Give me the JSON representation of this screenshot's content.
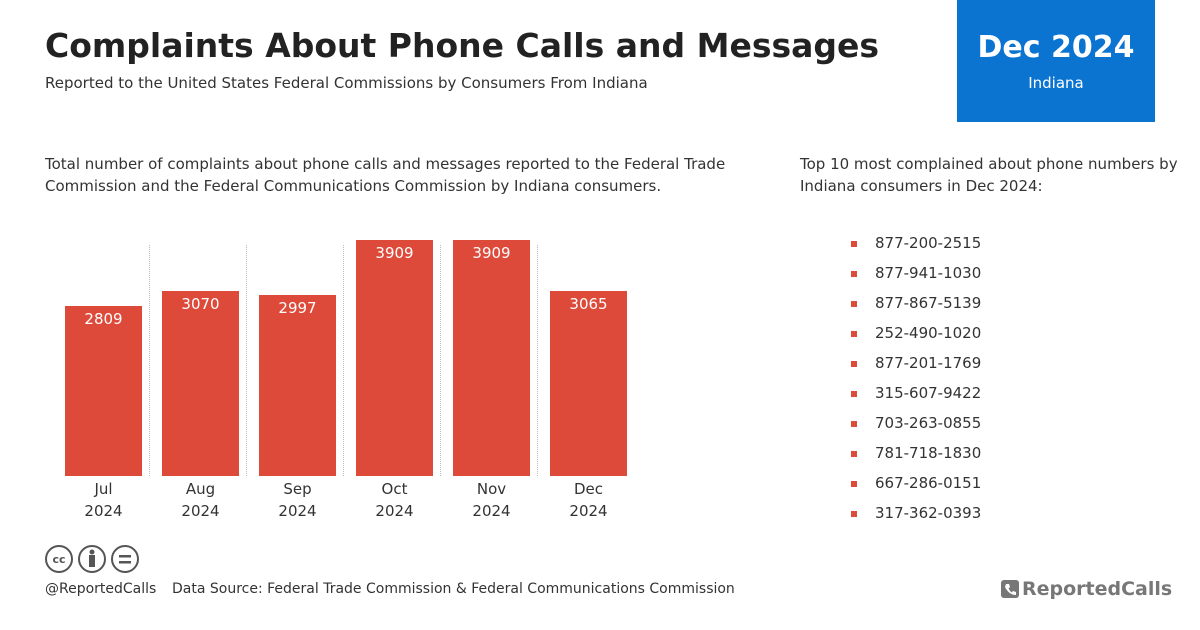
{
  "header": {
    "title": "Complaints About Phone Calls and Messages",
    "subtitle": "Reported to the United States Federal Commissions by Consumers From Indiana",
    "badge_date": "Dec 2024",
    "badge_state": "Indiana"
  },
  "chart_data": {
    "type": "bar",
    "description": "Total number of complaints about phone calls and messages reported to the Federal Trade Commission and the Federal Communications Commission by Indiana consumers.",
    "categories": [
      "Jul 2024",
      "Aug 2024",
      "Sep 2024",
      "Oct 2024",
      "Nov 2024",
      "Dec 2024"
    ],
    "values": [
      2809,
      3070,
      2997,
      3909,
      3909,
      3065
    ],
    "color": "#de4a3a"
  },
  "top_numbers": {
    "title": "Top 10 most complained about phone numbers by Indiana consumers in Dec 2024:",
    "items": [
      "877-200-2515",
      "877-941-1030",
      "877-867-5139",
      "252-490-1020",
      "877-201-1769",
      "315-607-9422",
      "703-263-0855",
      "781-718-1830",
      "667-286-0151",
      "317-362-0393"
    ]
  },
  "footer": {
    "handle": "@ReportedCalls",
    "source": "Data Source: Federal Trade Commission & Federal Communications Commission",
    "logo": "ReportedCalls"
  }
}
